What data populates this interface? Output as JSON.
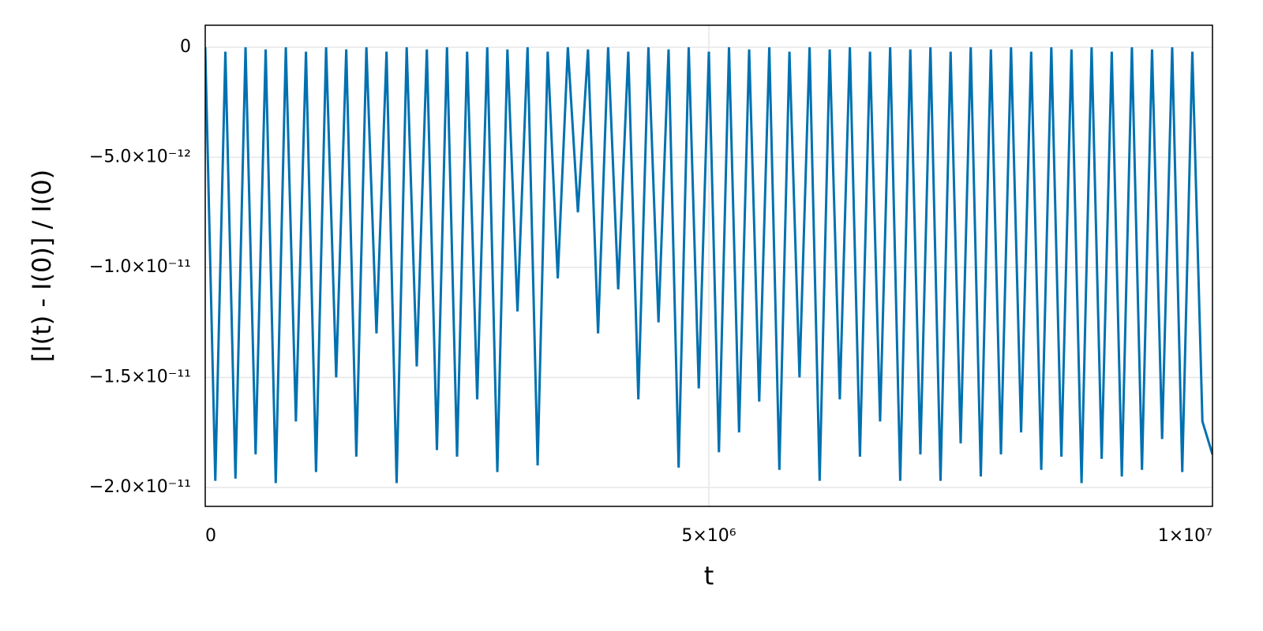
{
  "chart_data": {
    "type": "line",
    "x_label": "t",
    "y_label": "[I(t) - I(0)] / I(0)",
    "color": "#0071b0",
    "grid": true,
    "xlim": [
      0,
      10000000
    ],
    "ylim": [
      -2.086e-11,
      1e-12
    ],
    "xticks": [
      0,
      {
        "value": 5000000,
        "label": "5×10⁶"
      },
      {
        "value": 10000000,
        "label": "1×10⁷"
      }
    ],
    "yticks": [
      0,
      {
        "value": -5e-12,
        "label": "−5.0×10⁻¹²"
      },
      {
        "value": -1e-11,
        "label": "−1.0×10⁻¹¹"
      },
      {
        "value": -1.5e-11,
        "label": "−1.5×10⁻¹¹"
      },
      {
        "value": -2e-11,
        "label": "−2.0×10⁻¹¹"
      }
    ],
    "x": [
      0,
      100000,
      200000,
      300000,
      400000,
      500000,
      600000,
      700000,
      800000,
      900000,
      1000000,
      1100000,
      1200000,
      1300000,
      1400000,
      1500000,
      1600000,
      1700000,
      1800000,
      1900000,
      2000000,
      2100000,
      2200000,
      2300000,
      2400000,
      2500000,
      2600000,
      2700000,
      2800000,
      2900000,
      3000000,
      3100000,
      3200000,
      3300000,
      3400000,
      3500000,
      3600000,
      3700000,
      3800000,
      3900000,
      4000000,
      4100000,
      4200000,
      4300000,
      4400000,
      4500000,
      4600000,
      4700000,
      4800000,
      4900000,
      5000000,
      5100000,
      5200000,
      5300000,
      5400000,
      5500000,
      5600000,
      5700000,
      5800000,
      5900000,
      6000000,
      6100000,
      6200000,
      6300000,
      6400000,
      6500000,
      6600000,
      6700000,
      6800000,
      6900000,
      7000000,
      7100000,
      7200000,
      7300000,
      7400000,
      7500000,
      7600000,
      7700000,
      7800000,
      7900000,
      8000000,
      8100000,
      8200000,
      8300000,
      8400000,
      8500000,
      8600000,
      8700000,
      8800000,
      8900000,
      9000000,
      9100000,
      9200000,
      9300000,
      9400000,
      9500000,
      9600000,
      9700000,
      9800000,
      9900000,
      10000000
    ],
    "values": [
      0,
      -1.97e-11,
      -2e-13,
      -1.96e-11,
      0,
      -1.85e-11,
      -1e-13,
      -1.98e-11,
      0,
      -1.7e-11,
      -2e-13,
      -1.93e-11,
      0,
      -1.5e-11,
      -1e-13,
      -1.86e-11,
      0,
      -1.3e-11,
      -2e-13,
      -1.98e-11,
      0,
      -1.45e-11,
      -1e-13,
      -1.83e-11,
      0,
      -1.86e-11,
      -2e-13,
      -1.6e-11,
      0,
      -1.93e-11,
      -1e-13,
      -1.2e-11,
      0,
      -1.9e-11,
      -2e-13,
      -1.05e-11,
      0,
      -7.5e-12,
      -1e-13,
      -1.3e-11,
      0,
      -1.1e-11,
      -2e-13,
      -1.6e-11,
      0,
      -1.25e-11,
      -1e-13,
      -1.91e-11,
      0,
      -1.55e-11,
      -2e-13,
      -1.84e-11,
      0,
      -1.75e-11,
      -1e-13,
      -1.61e-11,
      0,
      -1.92e-11,
      -2e-13,
      -1.5e-11,
      0,
      -1.97e-11,
      -1e-13,
      -1.6e-11,
      0,
      -1.86e-11,
      -2e-13,
      -1.7e-11,
      0,
      -1.97e-11,
      -1e-13,
      -1.85e-11,
      0,
      -1.97e-11,
      -2e-13,
      -1.8e-11,
      0,
      -1.95e-11,
      -1e-13,
      -1.85e-11,
      0,
      -1.75e-11,
      -2e-13,
      -1.92e-11,
      0,
      -1.86e-11,
      -1e-13,
      -1.98e-11,
      0,
      -1.87e-11,
      -2e-13,
      -1.95e-11,
      0,
      -1.92e-11,
      -1e-13,
      -1.78e-11,
      0,
      -1.93e-11,
      -2e-13,
      -1.7e-11,
      -1.85e-11
    ]
  }
}
